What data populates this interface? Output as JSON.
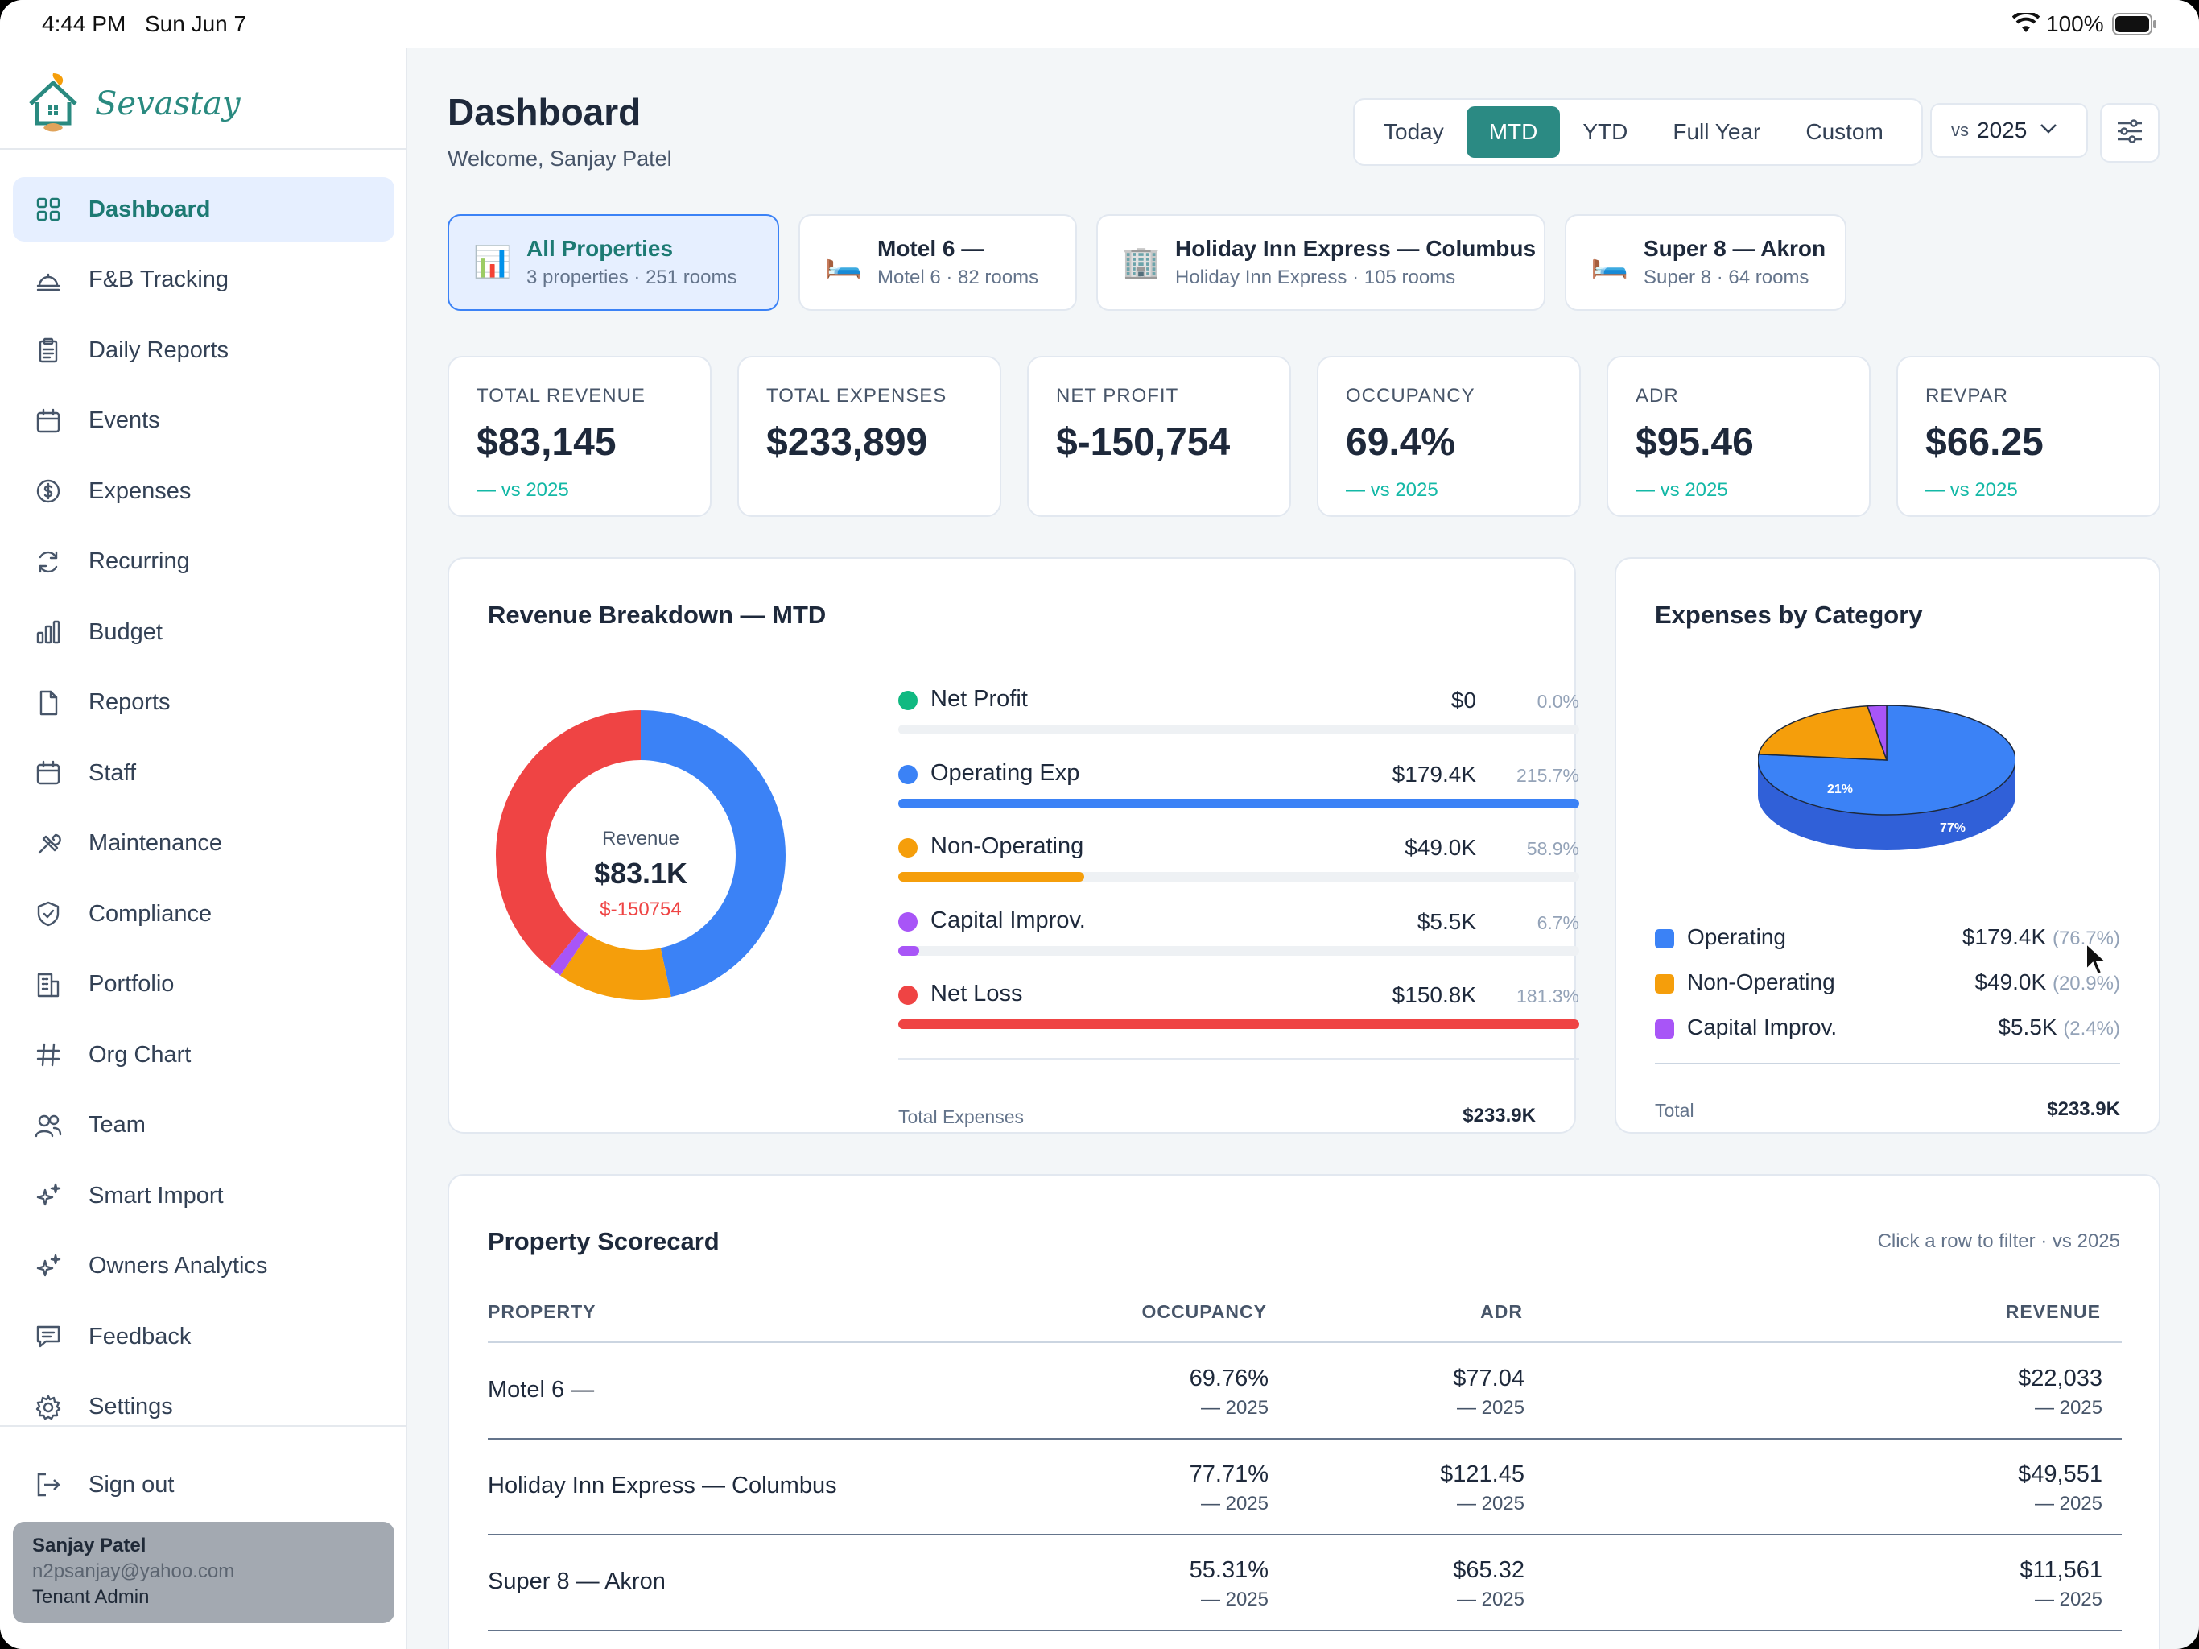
{
  "status_bar": {
    "time": "4:44 PM",
    "date": "Sun Jun 7",
    "battery": "100%"
  },
  "brand": {
    "name": "Sevastay"
  },
  "nav": [
    {
      "label": "Dashboard",
      "icon": "grid-icon",
      "active": true
    },
    {
      "label": "F&B Tracking",
      "icon": "cloche-icon"
    },
    {
      "label": "Daily Reports",
      "icon": "clipboard-icon"
    },
    {
      "label": "Events",
      "icon": "calendar-icon"
    },
    {
      "label": "Expenses",
      "icon": "dollar-icon"
    },
    {
      "label": "Recurring",
      "icon": "recurring-icon"
    },
    {
      "label": "Budget",
      "icon": "bar-chart-icon"
    },
    {
      "label": "Reports",
      "icon": "file-icon"
    },
    {
      "label": "Staff",
      "icon": "calendar-staff-icon"
    },
    {
      "label": "Maintenance",
      "icon": "tools-icon"
    },
    {
      "label": "Compliance",
      "icon": "shield-icon"
    },
    {
      "label": "Portfolio",
      "icon": "building-icon"
    },
    {
      "label": "Org Chart",
      "icon": "hash-icon"
    },
    {
      "label": "Team",
      "icon": "users-icon"
    },
    {
      "label": "Smart Import",
      "icon": "sparkle-icon"
    },
    {
      "label": "Owners Analytics",
      "icon": "sparkle-icon"
    },
    {
      "label": "Feedback",
      "icon": "message-icon"
    },
    {
      "label": "Settings",
      "icon": "gear-icon"
    }
  ],
  "sign_out": "Sign out",
  "user": {
    "name": "Sanjay Patel",
    "email": "n2psanjay@yahoo.com",
    "role": "Tenant Admin"
  },
  "header": {
    "title": "Dashboard",
    "subtitle": "Welcome, Sanjay Patel"
  },
  "ranges": [
    "Today",
    "MTD",
    "YTD",
    "Full Year",
    "Custom"
  ],
  "active_range": "MTD",
  "compare": {
    "prefix": "vs",
    "year": "2025"
  },
  "properties": [
    {
      "name": "All Properties",
      "sub": "3 properties · 251 rooms",
      "icon": "📊",
      "active": true
    },
    {
      "name": "Motel 6 —",
      "sub": "Motel 6 · 82 rooms",
      "icon": "🛏️"
    },
    {
      "name": "Holiday Inn Express — Columbus",
      "sub": "Holiday Inn Express · 105 rooms",
      "icon": "🏢"
    },
    {
      "name": "Super 8 — Akron",
      "sub": "Super 8 · 64 rooms",
      "icon": "🛏️"
    }
  ],
  "kpis": [
    {
      "label": "TOTAL REVENUE",
      "value": "$83,145",
      "compare": "— vs 2025"
    },
    {
      "label": "TOTAL EXPENSES",
      "value": "$233,899",
      "compare": ""
    },
    {
      "label": "NET PROFIT",
      "value": "$-150,754",
      "compare": ""
    },
    {
      "label": "OCCUPANCY",
      "value": "69.4%",
      "compare": "— vs 2025"
    },
    {
      "label": "ADR",
      "value": "$95.46",
      "compare": "— vs 2025"
    },
    {
      "label": "REVPAR",
      "value": "$66.25",
      "compare": "— vs 2025"
    }
  ],
  "revenue_breakdown": {
    "title": "Revenue Breakdown — MTD",
    "center_label": "Revenue",
    "center_value": "$83.1K",
    "center_sub": "$-150754",
    "rows": [
      {
        "label": "Net Profit",
        "value": "$0",
        "pct": "0.0%",
        "color": "#10b981"
      },
      {
        "label": "Operating Exp",
        "value": "$179.4K",
        "pct": "215.7%",
        "color": "#3b82f6"
      },
      {
        "label": "Non-Operating",
        "value": "$49.0K",
        "pct": "58.9%",
        "color": "#f59e0b"
      },
      {
        "label": "Capital Improv.",
        "value": "$5.5K",
        "pct": "6.7%",
        "color": "#a855f7"
      },
      {
        "label": "Net Loss",
        "value": "$150.8K",
        "pct": "181.3%",
        "color": "#ef4444"
      }
    ],
    "total_label": "Total Expenses",
    "total_value": "$233.9K"
  },
  "expenses_by_category": {
    "title": "Expenses by Category",
    "rows": [
      {
        "label": "Operating",
        "value": "$179.4K",
        "pct": "(76.7%)",
        "color": "#3b82f6"
      },
      {
        "label": "Non-Operating",
        "value": "$49.0K",
        "pct": "(20.9%)",
        "color": "#f59e0b"
      },
      {
        "label": "Capital Improv.",
        "value": "$5.5K",
        "pct": "(2.4%)",
        "color": "#a855f7"
      }
    ],
    "pie_labels": {
      "operating": "77%",
      "non_operating": "21%"
    },
    "total_label": "Total",
    "total_value": "$233.9K"
  },
  "chart_data": [
    {
      "type": "pie",
      "title": "Revenue Breakdown — MTD",
      "series": [
        {
          "name": "Net Profit",
          "value": 0
        },
        {
          "name": "Operating Exp",
          "value": 179.4
        },
        {
          "name": "Non-Operating",
          "value": 49.0
        },
        {
          "name": "Capital Improv.",
          "value": 5.5
        },
        {
          "name": "Net Loss",
          "value": 150.8
        }
      ]
    },
    {
      "type": "pie",
      "title": "Expenses by Category",
      "series": [
        {
          "name": "Operating",
          "value": 76.7
        },
        {
          "name": "Non-Operating",
          "value": 20.9
        },
        {
          "name": "Capital Improv.",
          "value": 2.4
        }
      ]
    }
  ],
  "scorecard": {
    "title": "Property Scorecard",
    "hint": "Click a row to filter · vs 2025",
    "columns": [
      "PROPERTY",
      "OCCUPANCY",
      "ADR",
      "REVENUE"
    ],
    "rows": [
      {
        "property": "Motel 6 —",
        "occupancy": "69.76%",
        "adr": "$77.04",
        "revenue": "$22,033",
        "cmp": "— 2025"
      },
      {
        "property": "Holiday Inn Express — Columbus",
        "occupancy": "77.71%",
        "adr": "$121.45",
        "revenue": "$49,551",
        "cmp": "— 2025"
      },
      {
        "property": "Super 8 — Akron",
        "occupancy": "55.31%",
        "adr": "$65.32",
        "revenue": "$11,561",
        "cmp": "— 2025"
      }
    ]
  }
}
